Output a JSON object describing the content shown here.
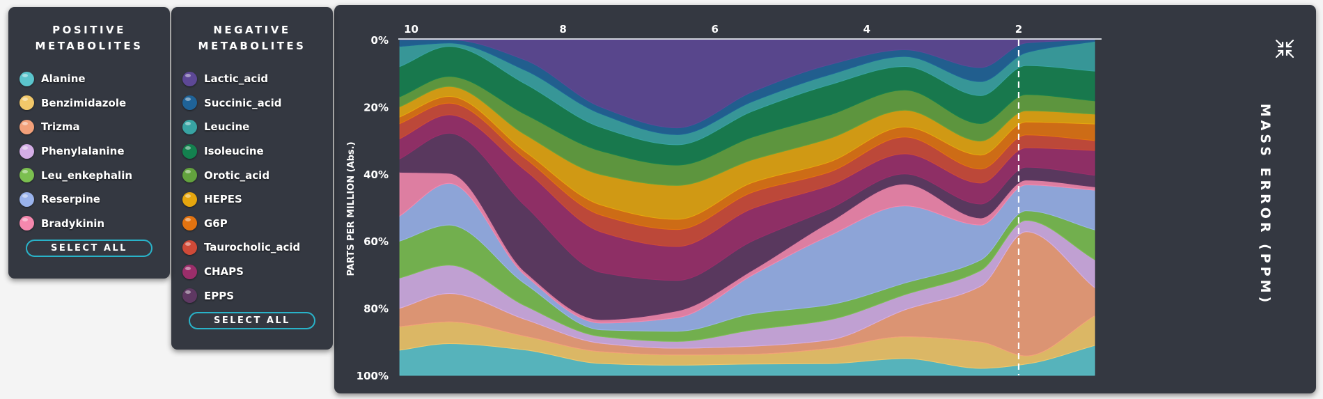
{
  "positive_panel": {
    "title_line1": "POSITIVE",
    "title_line2": "METABOLITES",
    "select_all": "SELECT ALL",
    "items": [
      {
        "label": "Alanine",
        "color": "#5bc4cc"
      },
      {
        "label": "Benzimidazole",
        "color": "#f2c86a"
      },
      {
        "label": "Trizma",
        "color": "#f2a07a"
      },
      {
        "label": "Phenylalanine",
        "color": "#d4aee6"
      },
      {
        "label": "Leu_enkephalin",
        "color": "#7bbf50"
      },
      {
        "label": "Reserpine",
        "color": "#9ab3ec"
      },
      {
        "label": "Bradykinin",
        "color": "#f588ae"
      }
    ]
  },
  "negative_panel": {
    "title_line1": "NEGATIVE",
    "title_line2": "METABOLITES",
    "select_all": "SELECT ALL",
    "items": [
      {
        "label": "Lactic_acid",
        "color": "#5d4896"
      },
      {
        "label": "Succinic_acid",
        "color": "#1f6398"
      },
      {
        "label": "Leucine",
        "color": "#38a3a3"
      },
      {
        "label": "Isoleucine",
        "color": "#14814f"
      },
      {
        "label": "Orotic_acid",
        "color": "#63a23e"
      },
      {
        "label": "HEPES",
        "color": "#e6a60e"
      },
      {
        "label": "G6P",
        "color": "#e37310"
      },
      {
        "label": "Taurocholic_acid",
        "color": "#cf4a38"
      },
      {
        "label": "CHAPS",
        "color": "#9b2e6a"
      },
      {
        "label": "EPPS",
        "color": "#5e3862"
      }
    ]
  },
  "chart_data": {
    "type": "area",
    "stacked": "normalized",
    "title": "MASS ERROR (PPM)",
    "ylabel": "PARTS PER MILLION (Abs.)",
    "x_reversed": true,
    "x_ticks": [
      "10",
      "8",
      "6",
      "4",
      "2"
    ],
    "y_ticks": [
      "0%",
      "20%",
      "40%",
      "60%",
      "80%",
      "100%"
    ],
    "xlim": [
      10.17,
      1.0
    ],
    "ylim": [
      0,
      100
    ],
    "x": [
      10.15,
      9.5,
      8.5,
      7.5,
      6.5,
      5.5,
      4.5,
      3.5,
      2.5,
      1.9,
      1.0
    ],
    "marker_x": 2,
    "series": [
      {
        "name": "Alanine",
        "color": "#5bc4cc",
        "values": [
          7.5,
          9.5,
          7.5,
          3.5,
          3,
          3.5,
          3.5,
          5,
          2,
          3.5,
          9
        ]
      },
      {
        "name": "Benzimidazole",
        "color": "#f2c86a",
        "values": [
          7,
          6.5,
          4,
          3.5,
          3,
          3,
          4.5,
          6.5,
          7.5,
          2.5,
          9
        ]
      },
      {
        "name": "Trizma",
        "color": "#f2a07a",
        "values": [
          5.5,
          8.5,
          5,
          2.5,
          2,
          2.5,
          2.5,
          8,
          16,
          38.5,
          8.5
        ]
      },
      {
        "name": "Phenylalanine",
        "color": "#d4aee6",
        "values": [
          9,
          8.5,
          4,
          2,
          2,
          5,
          6,
          4.5,
          4.5,
          3.5,
          8.5
        ]
      },
      {
        "name": "Leu_enkephalin",
        "color": "#7bbf50",
        "values": [
          11,
          12,
          6.5,
          2,
          3,
          5,
          4.5,
          3.5,
          3,
          3,
          9
        ]
      },
      {
        "name": "Reserpine",
        "color": "#9ab3ec",
        "values": [
          7.5,
          12.5,
          2.5,
          2,
          4,
          12,
          20.5,
          23,
          10,
          8,
          12
        ]
      },
      {
        "name": "Bradykinin",
        "color": "#f588ae",
        "values": [
          13,
          3,
          1,
          1,
          2,
          1.5,
          4,
          6.5,
          2,
          1.5,
          1
        ]
      },
      {
        "name": "EPPS",
        "color": "#5e3862",
        "values": [
          4,
          12,
          19.5,
          14,
          9,
          9,
          4,
          3,
          4,
          4,
          3.5
        ]
      },
      {
        "name": "CHAPS",
        "color": "#9b2e6a",
        "values": [
          6,
          5.5,
          10.5,
          12,
          10,
          10,
          7,
          6,
          6,
          6,
          7.5
        ]
      },
      {
        "name": "Taurocholic_acid",
        "color": "#cf4a38",
        "values": [
          4.5,
          3.5,
          3.5,
          5,
          5,
          5,
          4,
          5,
          4,
          4,
          3
        ]
      },
      {
        "name": "G6P",
        "color": "#e37310",
        "values": [
          2,
          2,
          2,
          3,
          3,
          3,
          3,
          3,
          4,
          4,
          5
        ]
      },
      {
        "name": "HEPES",
        "color": "#e6a60e",
        "values": [
          3,
          3,
          5,
          9,
          10,
          7,
          7,
          5,
          4,
          3.5,
          3
        ]
      },
      {
        "name": "Orotic_acid",
        "color": "#63a23e",
        "values": [
          3,
          3,
          6,
          7,
          6,
          7,
          7,
          6,
          5,
          5,
          4
        ]
      },
      {
        "name": "Isoleucine",
        "color": "#14814f",
        "values": [
          9,
          9,
          9,
          7,
          6,
          8,
          9,
          7,
          8,
          9,
          9
        ]
      },
      {
        "name": "Leucine",
        "color": "#38a3a3",
        "values": [
          6,
          1,
          4,
          4,
          3,
          3,
          3,
          3,
          4,
          4,
          9
        ]
      },
      {
        "name": "Succinic_acid",
        "color": "#1f6398",
        "values": [
          2,
          1,
          3,
          2,
          2,
          3,
          3,
          2,
          4,
          3,
          0.5
        ]
      },
      {
        "name": "Lactic_acid",
        "color": "#5d4896",
        "values": [
          0,
          0,
          6,
          20,
          26,
          16,
          7.5,
          3,
          8,
          1,
          0
        ]
      }
    ]
  }
}
